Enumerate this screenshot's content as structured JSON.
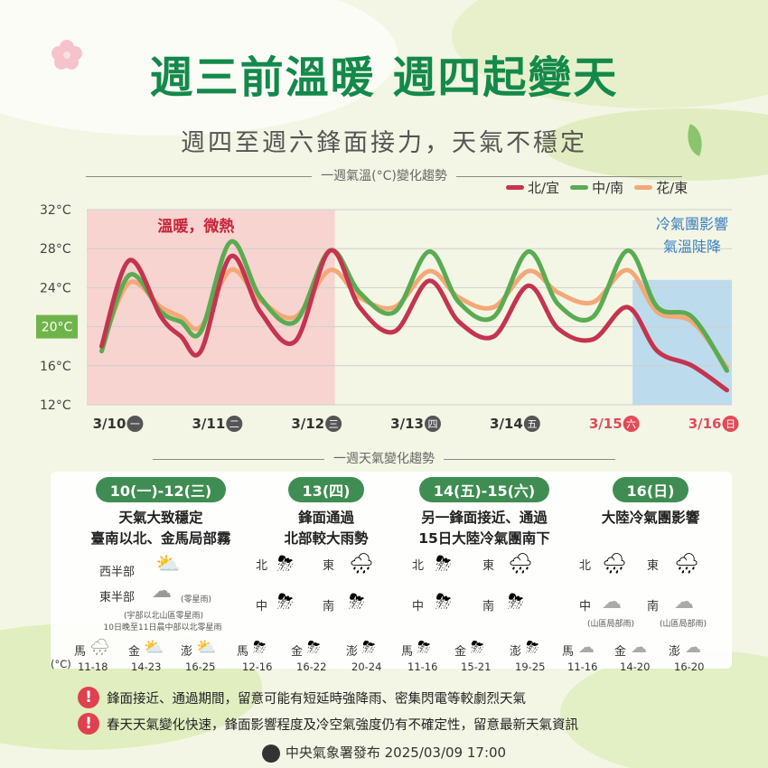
{
  "header": {
    "title": "週三前溫暖 週四起變天",
    "subtitle": "週四至週六鋒面接力，天氣不穩定"
  },
  "temp_section_title": "一週氣溫(°C)變化趨勢",
  "weather_section_title": "一週天氣變化趨勢",
  "chart_data": {
    "type": "line",
    "title": "一週氣溫(°C)變化趨勢",
    "x": [
      "3/10",
      "3/11",
      "3/12",
      "3/13",
      "3/14",
      "3/15",
      "3/16"
    ],
    "x_day_labels": [
      "一",
      "二",
      "三",
      "四",
      "五",
      "六",
      "日"
    ],
    "x_tick_colors": [
      "#333333",
      "#333333",
      "#333333",
      "#333333",
      "#333333",
      "#e04b5a",
      "#e04b5a"
    ],
    "ylim": [
      12,
      32
    ],
    "yticks": [
      "12°C",
      "16°C",
      "20°C",
      "24°C",
      "28°C",
      "32°C"
    ],
    "highlight_ytick": "20°C",
    "grid": true,
    "legend_position": "top-right",
    "annotations": [
      {
        "text": "溫暖，微熱",
        "color": "#c8243a"
      },
      {
        "text": "冷氣團影響",
        "color": "#3a7fc0"
      },
      {
        "text": "氣溫陡降",
        "color": "#3a7fc0"
      }
    ],
    "series": [
      {
        "name": "北/宜",
        "color": "#c4344f",
        "x": [
          0,
          0.28,
          0.6,
          0.8,
          1.0,
          1.3,
          1.6,
          1.95,
          2.3,
          2.6,
          2.95,
          3.3,
          3.6,
          3.95,
          4.3,
          4.6,
          4.95,
          5.3,
          5.6,
          5.95,
          6.3
        ],
        "y": [
          18,
          26.8,
          21,
          19,
          17.5,
          27.2,
          21.5,
          18.5,
          27.8,
          22,
          19.5,
          24.7,
          20.5,
          19,
          24.2,
          19.8,
          18.7,
          22,
          17.5,
          16,
          13.5
        ]
      },
      {
        "name": "中/南",
        "color": "#5aab52",
        "x": [
          0,
          0.28,
          0.6,
          0.8,
          1.0,
          1.3,
          1.6,
          1.95,
          2.3,
          2.6,
          2.95,
          3.3,
          3.6,
          3.95,
          4.3,
          4.6,
          4.95,
          5.3,
          5.6,
          5.95,
          6.3
        ],
        "y": [
          17.5,
          25.3,
          21.5,
          20.5,
          19.5,
          28.7,
          23,
          20.5,
          27.8,
          23.5,
          21.5,
          27.7,
          22.5,
          21,
          27.7,
          22.3,
          21,
          27.8,
          22,
          21,
          15.5
        ]
      },
      {
        "name": "花/東",
        "color": "#f4a878",
        "x": [
          0,
          0.28,
          0.6,
          0.8,
          1.0,
          1.3,
          1.6,
          1.95,
          2.3,
          2.6,
          2.95,
          3.3,
          3.6,
          3.95,
          4.3,
          4.6,
          4.95,
          5.3,
          5.6,
          5.95,
          6.3
        ],
        "y": [
          18,
          24.5,
          22,
          21,
          20,
          25.8,
          22.7,
          21,
          25.8,
          23,
          22,
          25.7,
          23,
          22,
          25.7,
          23.5,
          22.5,
          25.8,
          21.5,
          20.5,
          15.8
        ]
      }
    ]
  },
  "weather": {
    "groups": [
      {
        "pill": "10(一)-12(三)",
        "lines": [
          "天氣大致穩定",
          "臺南以北、金馬局部霧"
        ]
      },
      {
        "pill": "13(四)",
        "lines": [
          "鋒面通過",
          "北部較大雨勢"
        ]
      },
      {
        "pill": "14(五)-15(六)",
        "lines": [
          "另一鋒面接近、通過",
          "15日大陸冷氣團南下"
        ]
      },
      {
        "pill": "16(日)",
        "lines": [
          "大陸冷氣團影響"
        ]
      }
    ],
    "g1": {
      "west": "西半部",
      "east": "東半部",
      "east_note": "(零星雨)",
      "note1": "(宇部以北山區零星雨)",
      "note2": "10日晚至11日晨中部以北零星雨"
    },
    "region_labels": {
      "north": "北",
      "east": "東",
      "central": "中",
      "south": "南"
    },
    "mountain_note": "(山區局部雨)",
    "stations": {
      "ma": "馬",
      "jin": "金",
      "peng": "澎"
    },
    "unit_label": "(°C)",
    "ranges": [
      "11-18",
      "14-23",
      "16-25",
      "12-16",
      "16-22",
      "20-24",
      "11-16",
      "15-21",
      "19-25",
      "11-16",
      "14-20",
      "16-20"
    ],
    "icons": {
      "sun_cloud": "⛅",
      "cloud": "☁",
      "storm": "⛈",
      "rain": "🌧"
    }
  },
  "warnings": [
    "鋒面接近、通過期間，留意可能有短延時強降雨、密集閃電等較劇烈天氣",
    "春天天氣變化快速，鋒面影響程度及冷空氣強度仍有不確定性，留意最新天氣資訊"
  ],
  "warning_mark": "!",
  "footer": "中央氣象署發布 2025/03/09 17:00"
}
